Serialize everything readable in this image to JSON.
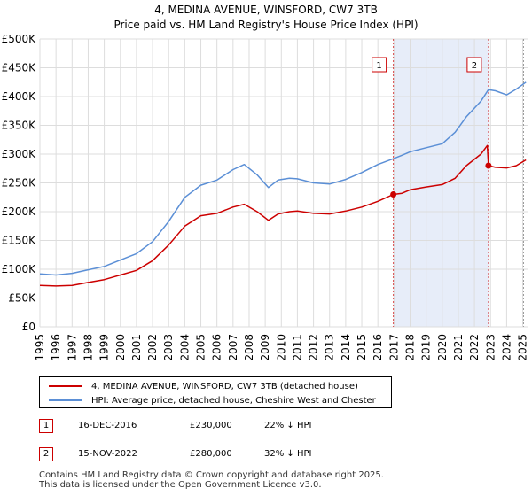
{
  "title_line1": "4, MEDINA AVENUE, WINSFORD, CW7 3TB",
  "title_line2": "Price paid vs. HM Land Registry's House Price Index (HPI)",
  "chart_data": {
    "type": "line",
    "title": "4, MEDINA AVENUE, WINSFORD, CW7 3TB — Price paid vs. HM Land Registry's House Price Index (HPI)",
    "xlabel": "",
    "ylabel": "",
    "xlim": [
      1995,
      2025.3
    ],
    "ylim": [
      0,
      500000
    ],
    "grid": true,
    "y_ticks": [
      0,
      50000,
      100000,
      150000,
      200000,
      250000,
      300000,
      350000,
      400000,
      450000,
      500000
    ],
    "y_tick_labels": [
      "£0",
      "£50K",
      "£100K",
      "£150K",
      "£200K",
      "£250K",
      "£300K",
      "£350K",
      "£400K",
      "£450K",
      "£500K"
    ],
    "x_ticks": [
      1995,
      1996,
      1997,
      1998,
      1999,
      2000,
      2001,
      2002,
      2003,
      2004,
      2005,
      2006,
      2007,
      2008,
      2009,
      2010,
      2011,
      2012,
      2013,
      2014,
      2015,
      2016,
      2017,
      2018,
      2019,
      2020,
      2021,
      2022,
      2023,
      2024,
      2025
    ],
    "x_tick_labels": [
      "1995",
      "1996",
      "1997",
      "1998",
      "1999",
      "2000",
      "2001",
      "2002",
      "2003",
      "2004",
      "2005",
      "2006",
      "2007",
      "2008",
      "2009",
      "2010",
      "2011",
      "2012",
      "2013",
      "2014",
      "2015",
      "2016",
      "2017",
      "2018",
      "2019",
      "2020",
      "2021",
      "2022",
      "2023",
      "2024",
      "2025"
    ],
    "shaded_region": {
      "start": 2016.96,
      "end": 2022.87,
      "color": "#dde6f7"
    },
    "series": [
      {
        "name": "4, MEDINA AVENUE, WINSFORD, CW7 3TB (detached house)",
        "color": "#cc0000",
        "points": [
          [
            1995,
            72000
          ],
          [
            1996,
            71000
          ],
          [
            1997,
            72000
          ],
          [
            1998,
            77000
          ],
          [
            1999,
            82000
          ],
          [
            2000,
            90000
          ],
          [
            2001,
            98000
          ],
          [
            2002,
            115000
          ],
          [
            2003,
            142000
          ],
          [
            2004,
            175000
          ],
          [
            2005,
            193000
          ],
          [
            2006,
            197000
          ],
          [
            2007,
            208000
          ],
          [
            2007.7,
            213000
          ],
          [
            2008.5,
            200000
          ],
          [
            2009.2,
            185000
          ],
          [
            2009.8,
            196000
          ],
          [
            2010.5,
            200000
          ],
          [
            2011,
            201000
          ],
          [
            2012,
            197000
          ],
          [
            2013,
            196000
          ],
          [
            2014,
            201000
          ],
          [
            2015,
            208000
          ],
          [
            2016,
            218000
          ],
          [
            2016.96,
            230000
          ],
          [
            2017.5,
            232000
          ],
          [
            2018,
            238000
          ],
          [
            2019,
            243000
          ],
          [
            2020,
            247000
          ],
          [
            2020.8,
            258000
          ],
          [
            2021.5,
            280000
          ],
          [
            2022.4,
            300000
          ],
          [
            2022.8,
            315000
          ],
          [
            2022.87,
            280000
          ],
          [
            2023.3,
            277000
          ],
          [
            2024,
            276000
          ],
          [
            2024.6,
            280000
          ],
          [
            2025.2,
            290000
          ]
        ]
      },
      {
        "name": "HPI: Average price, detached house, Cheshire West and Chester",
        "color": "#5b8fd6",
        "points": [
          [
            1995,
            92000
          ],
          [
            1996,
            90000
          ],
          [
            1997,
            93000
          ],
          [
            1998,
            99000
          ],
          [
            1999,
            105000
          ],
          [
            2000,
            116000
          ],
          [
            2001,
            127000
          ],
          [
            2002,
            148000
          ],
          [
            2003,
            183000
          ],
          [
            2004,
            225000
          ],
          [
            2005,
            246000
          ],
          [
            2006,
            255000
          ],
          [
            2007,
            273000
          ],
          [
            2007.7,
            282000
          ],
          [
            2008.5,
            264000
          ],
          [
            2009.2,
            242000
          ],
          [
            2009.8,
            255000
          ],
          [
            2010.5,
            258000
          ],
          [
            2011,
            257000
          ],
          [
            2012,
            250000
          ],
          [
            2013,
            248000
          ],
          [
            2014,
            256000
          ],
          [
            2015,
            268000
          ],
          [
            2016,
            282000
          ],
          [
            2016.96,
            292000
          ],
          [
            2017.5,
            298000
          ],
          [
            2018,
            304000
          ],
          [
            2019,
            311000
          ],
          [
            2020,
            318000
          ],
          [
            2020.8,
            338000
          ],
          [
            2021.5,
            365000
          ],
          [
            2022.4,
            392000
          ],
          [
            2022.87,
            412000
          ],
          [
            2023.3,
            410000
          ],
          [
            2024,
            403000
          ],
          [
            2024.6,
            413000
          ],
          [
            2025.2,
            425000
          ]
        ]
      }
    ],
    "sales": [
      {
        "label": "1",
        "x": 2016.96,
        "y": 230000
      },
      {
        "label": "2",
        "x": 2022.87,
        "y": 280000
      }
    ]
  },
  "legend": {
    "property_label": "4, MEDINA AVENUE, WINSFORD, CW7 3TB (detached house)",
    "hpi_label": "HPI: Average price, detached house, Cheshire West and Chester"
  },
  "colors": {
    "property": "#cc0000",
    "hpi": "#5b8fd6",
    "grid": "#dddddd",
    "shade": "#dde6f7"
  },
  "sales_table": [
    {
      "num": "1",
      "date": "16-DEC-2016",
      "price": "£230,000",
      "hpi": "22% ↓ HPI"
    },
    {
      "num": "2",
      "date": "15-NOV-2022",
      "price": "£280,000",
      "hpi": "32% ↓ HPI"
    }
  ],
  "footer_line1": "Contains HM Land Registry data © Crown copyright and database right 2025.",
  "footer_line2": "This data is licensed under the Open Government Licence v3.0."
}
